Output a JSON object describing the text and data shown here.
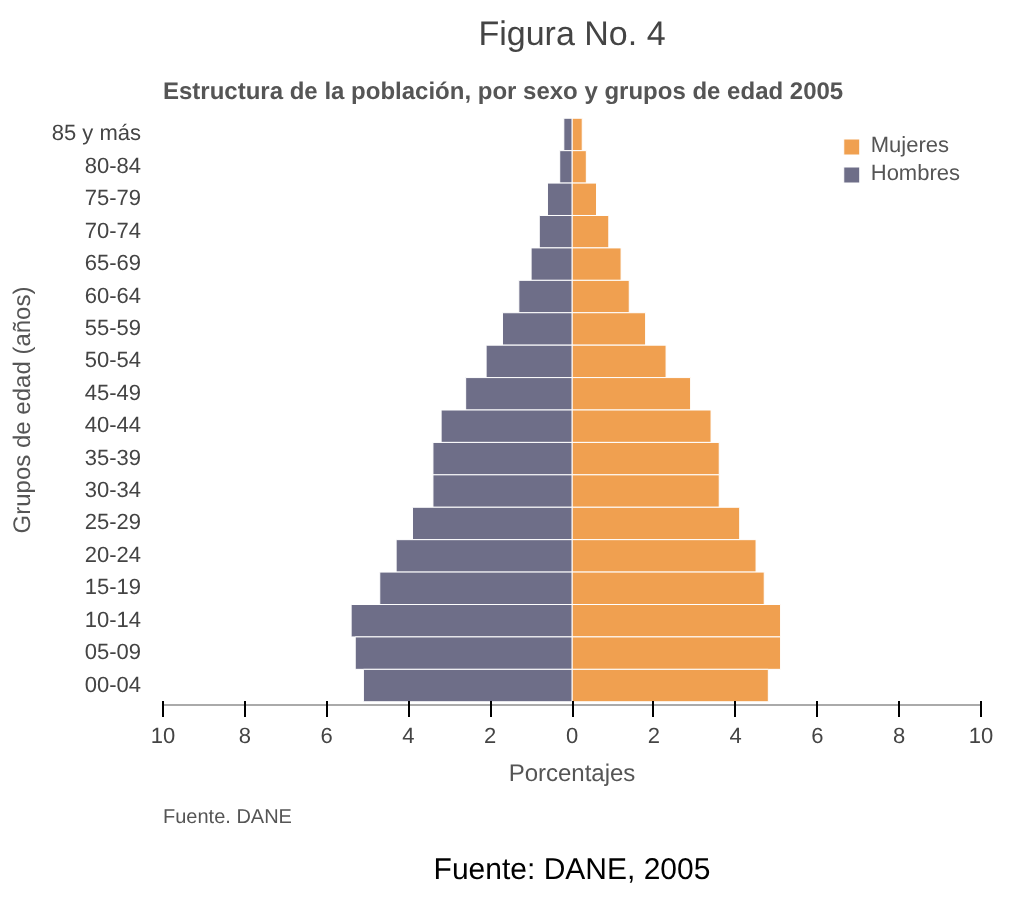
{
  "chart_data": {
    "type": "bar",
    "orientation": "horizontal",
    "title": "Figura No. 4",
    "subtitle": "Estructura de la población, por sexo y grupos de edad 2005",
    "xlabel": "Porcentajes",
    "ylabel": "Grupos de edad (años)",
    "categories": [
      "85 y más",
      "80-84",
      "75-79",
      "70-74",
      "65-69",
      "60-64",
      "55-59",
      "50-54",
      "45-49",
      "40-44",
      "35-39",
      "30-34",
      "25-29",
      "20-24",
      "15-19",
      "10-14",
      "05-09",
      "00-04"
    ],
    "series": [
      {
        "name": "Mujeres",
        "color": "#f0a050",
        "values": [
          0.25,
          0.35,
          0.6,
          0.9,
          1.2,
          1.4,
          1.8,
          2.3,
          2.9,
          3.4,
          3.6,
          3.6,
          4.1,
          4.5,
          4.7,
          5.1,
          5.1,
          4.8
        ]
      },
      {
        "name": "Hombres",
        "color": "#6e6e88",
        "values": [
          -0.2,
          -0.3,
          -0.6,
          -0.8,
          -1.0,
          -1.3,
          -1.7,
          -2.1,
          -2.6,
          -3.2,
          -3.4,
          -3.4,
          -3.9,
          -4.3,
          -4.7,
          -5.4,
          -5.3,
          -5.1
        ]
      }
    ],
    "xlim": [
      -10,
      10
    ],
    "xticks": [
      {
        "value": -10,
        "label": "10"
      },
      {
        "value": -8,
        "label": "8"
      },
      {
        "value": -6,
        "label": "6"
      },
      {
        "value": -4,
        "label": "4"
      },
      {
        "value": -2,
        "label": "2"
      },
      0,
      2,
      4,
      6,
      8,
      10
    ],
    "grid": false,
    "legend": "top right",
    "stacked": true,
    "annotations": [
      "Fuente. DANE",
      "Fuente: DANE, 2005"
    ]
  }
}
